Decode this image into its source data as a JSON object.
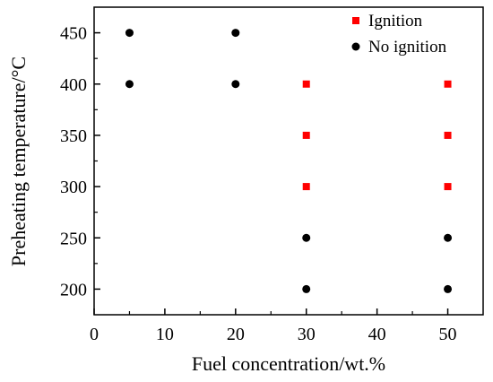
{
  "chart_data": {
    "type": "scatter",
    "xlabel": "Fuel concentration/wt.%",
    "ylabel": "Preheating temperature/°C",
    "xlim": [
      0,
      55
    ],
    "ylim": [
      175,
      475
    ],
    "x_ticks": [
      0,
      10,
      20,
      30,
      40,
      50
    ],
    "y_ticks": [
      200,
      250,
      300,
      350,
      400,
      450
    ],
    "grid": false,
    "legend_position": "top-right",
    "series": [
      {
        "name": "Ignition",
        "marker": "square",
        "color": "#ff0000",
        "points": [
          {
            "x": 30,
            "y": 300
          },
          {
            "x": 30,
            "y": 350
          },
          {
            "x": 30,
            "y": 400
          },
          {
            "x": 50,
            "y": 300
          },
          {
            "x": 50,
            "y": 350
          },
          {
            "x": 50,
            "y": 400
          }
        ]
      },
      {
        "name": "No ignition",
        "marker": "circle",
        "color": "#000000",
        "points": [
          {
            "x": 5,
            "y": 400
          },
          {
            "x": 5,
            "y": 450
          },
          {
            "x": 20,
            "y": 400
          },
          {
            "x": 20,
            "y": 450
          },
          {
            "x": 30,
            "y": 200
          },
          {
            "x": 30,
            "y": 250
          },
          {
            "x": 50,
            "y": 200
          },
          {
            "x": 50,
            "y": 250
          }
        ]
      }
    ]
  }
}
